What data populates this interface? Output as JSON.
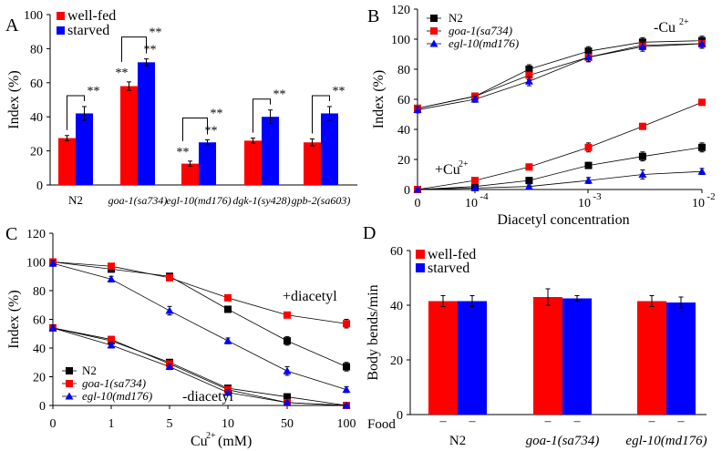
{
  "colors": {
    "red": "#ff0000",
    "blue": "#0000ff",
    "black": "#000000"
  },
  "panels": {
    "A": "A",
    "B": "B",
    "C": "C",
    "D": "D"
  },
  "chart_data": [
    {
      "panel": "A",
      "type": "bar",
      "ylabel": "Index (%)",
      "ylim": [
        0,
        100
      ],
      "yticks": [
        "0",
        "20",
        "40",
        "60",
        "80",
        "100"
      ],
      "categories": [
        "N2",
        "goa-1(sa734)",
        "egl-10(md176)",
        "dgk-1(sy428)",
        "gpb-2(sa603)"
      ],
      "series": [
        {
          "name": "well-fed",
          "color": "#ff0000",
          "values": [
            27.5,
            58,
            12.5,
            26,
            25
          ],
          "errors": [
            1.5,
            2.5,
            1.5,
            1.5,
            2
          ]
        },
        {
          "name": "starved",
          "color": "#0000ff",
          "values": [
            42,
            72,
            25,
            40,
            42
          ],
          "errors": [
            4,
            2,
            1.5,
            4,
            4
          ]
        }
      ],
      "significance": "**"
    },
    {
      "panel": "B",
      "type": "line",
      "xlabel": "Diacetyl concentration",
      "ylabel": "Index (%)",
      "ylim": [
        0,
        120
      ],
      "yticks": [
        "0",
        "20",
        "40",
        "60",
        "80",
        "100",
        "120"
      ],
      "xticks": [
        "0",
        "10",
        "-4",
        "10",
        "-3",
        "10",
        "-2"
      ],
      "x": [
        0,
        0.0001,
        0.0003,
        0.001,
        0.003,
        0.01
      ],
      "legend": [
        "N2",
        "goa-1(sa734)",
        "egl-10(md176)"
      ],
      "annotations": [
        "-Cu",
        "2+",
        "+Cu",
        "2+"
      ],
      "series": [
        {
          "name": "N2",
          "condition": "-Cu2+",
          "color": "#000000",
          "marker": "square",
          "values": [
            54,
            62,
            80,
            92,
            98,
            99
          ],
          "errors": [
            2,
            2,
            3,
            3,
            3,
            3
          ]
        },
        {
          "name": "goa-1(sa734)",
          "condition": "-Cu2+",
          "color": "#ff0000",
          "marker": "square",
          "values": [
            54,
            62,
            76,
            88,
            96,
            97
          ],
          "errors": [
            2,
            2,
            3,
            3,
            3,
            3
          ]
        },
        {
          "name": "egl-10(md176)",
          "condition": "-Cu2+",
          "color": "#0000ff",
          "marker": "triangle",
          "values": [
            53,
            60,
            72,
            88,
            95,
            97
          ],
          "errors": [
            2,
            2,
            3,
            3,
            3,
            3
          ]
        },
        {
          "name": "N2",
          "condition": "+Cu2+",
          "color": "#000000",
          "marker": "square",
          "values": [
            0,
            2,
            6,
            16,
            22,
            28
          ],
          "errors": [
            1,
            1,
            2,
            2,
            3,
            3
          ]
        },
        {
          "name": "goa-1(sa734)",
          "condition": "+Cu2+",
          "color": "#ff0000",
          "marker": "square",
          "values": [
            0,
            6,
            15,
            28,
            42,
            58
          ],
          "errors": [
            1,
            1,
            2,
            3,
            1,
            1
          ]
        },
        {
          "name": "egl-10(md176)",
          "condition": "+Cu2+",
          "color": "#0000ff",
          "marker": "triangle",
          "values": [
            0,
            1,
            2,
            6,
            10,
            12
          ],
          "errors": [
            1,
            1,
            1,
            2,
            3,
            2
          ]
        }
      ]
    },
    {
      "panel": "C",
      "type": "line",
      "xlabel": "Cu",
      "xlabel_sup": "2+",
      "xlabel_unit": "(mM)",
      "ylabel": "Index (%)",
      "ylim": [
        0,
        120
      ],
      "yticks": [
        "0",
        "20",
        "40",
        "60",
        "80",
        "100",
        "120"
      ],
      "categories": [
        "0",
        "1",
        "5",
        "10",
        "50",
        "100"
      ],
      "legend": [
        "N2",
        "goa-1(sa734)",
        "egl-10(md176)"
      ],
      "annotations": [
        "+diacetyl",
        "-diacetyl"
      ],
      "series": [
        {
          "name": "N2",
          "condition": "+diacetyl",
          "color": "#000000",
          "marker": "square",
          "values": [
            100,
            95,
            90,
            67,
            45,
            27
          ],
          "errors": [
            2,
            2,
            2,
            1,
            3,
            3
          ]
        },
        {
          "name": "goa-1(sa734)",
          "condition": "+diacetyl",
          "color": "#ff0000",
          "marker": "square",
          "values": [
            100,
            97,
            89,
            75,
            63,
            57
          ],
          "errors": [
            2,
            2,
            2,
            1,
            2,
            3
          ]
        },
        {
          "name": "egl-10(md176)",
          "condition": "+diacetyl",
          "color": "#0000ff",
          "marker": "triangle",
          "values": [
            99,
            88,
            66,
            45,
            24,
            11
          ],
          "errors": [
            2,
            2,
            3,
            2,
            3,
            2
          ]
        },
        {
          "name": "N2",
          "condition": "-diacetyl",
          "color": "#000000",
          "marker": "square",
          "values": [
            54,
            45,
            30,
            12,
            6,
            0
          ],
          "errors": [
            2,
            2,
            2,
            2,
            1,
            1
          ]
        },
        {
          "name": "goa-1(sa734)",
          "condition": "-diacetyl",
          "color": "#ff0000",
          "marker": "square",
          "values": [
            54,
            46,
            29,
            11,
            2,
            0
          ],
          "errors": [
            2,
            2,
            2,
            2,
            1,
            1
          ]
        },
        {
          "name": "egl-10(md176)",
          "condition": "-diacetyl",
          "color": "#0000ff",
          "marker": "triangle",
          "values": [
            54,
            42,
            27,
            9,
            2,
            0
          ],
          "errors": [
            2,
            2,
            2,
            2,
            1,
            1
          ]
        }
      ]
    },
    {
      "panel": "D",
      "type": "bar",
      "ylabel": "Body bends/min",
      "ylim": [
        0,
        60
      ],
      "yticks": [
        "0",
        "20",
        "40",
        "60"
      ],
      "categories": [
        "N2",
        "goa-1(sa734)",
        "egl-10(md176)"
      ],
      "food_label": "Food",
      "food_marks": [
        "–",
        "–",
        "–",
        "–",
        "–",
        "–"
      ],
      "series": [
        {
          "name": "well-fed",
          "color": "#ff0000",
          "values": [
            41.5,
            43,
            41.5
          ],
          "errors": [
            2,
            3,
            2
          ]
        },
        {
          "name": "starved",
          "color": "#0000ff",
          "values": [
            41.5,
            42.5,
            41
          ],
          "errors": [
            2,
            1,
            2
          ]
        }
      ]
    }
  ]
}
